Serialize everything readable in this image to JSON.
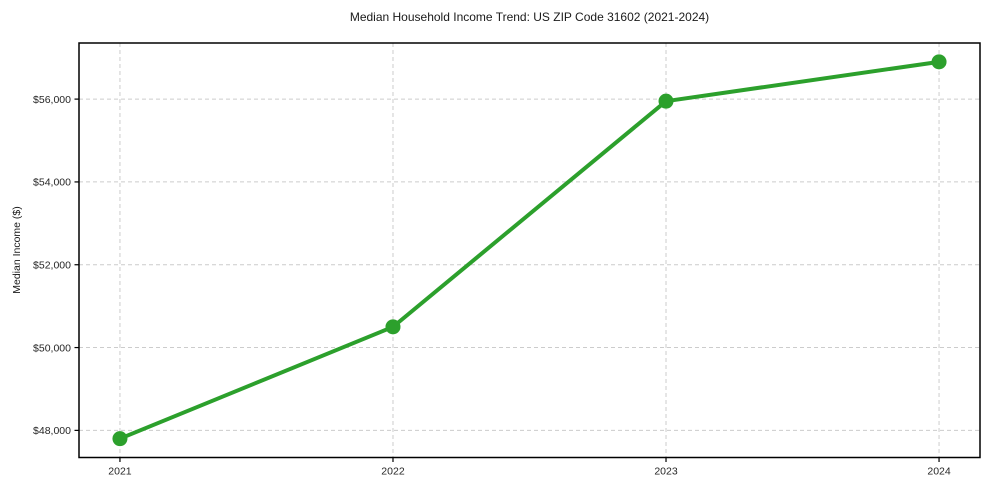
{
  "chart_data": {
    "type": "line",
    "title": "Median Household Income Trend: US ZIP Code 31602 (2021-2024)",
    "xlabel": "",
    "ylabel": "Median Income ($)",
    "x": [
      2021,
      2022,
      2023,
      2024
    ],
    "xtick_labels": [
      "2021",
      "2022",
      "2023",
      "2024"
    ],
    "series": [
      {
        "name": "Median Household Income",
        "values": [
          47800,
          50500,
          55950,
          56900
        ]
      }
    ],
    "yticks": [
      48000,
      50000,
      52000,
      54000,
      56000
    ],
    "ytick_labels": [
      "$48,000",
      "$50,000",
      "$52,000",
      "$54,000",
      "$56,000"
    ],
    "ylim": [
      47345,
      57355
    ],
    "grid": true,
    "legend": "none",
    "colors": {
      "line": "#2ca02c",
      "marker": "#2ca02c",
      "grid": "#cccccc",
      "spine": "#000000",
      "background": "#ffffff"
    }
  }
}
